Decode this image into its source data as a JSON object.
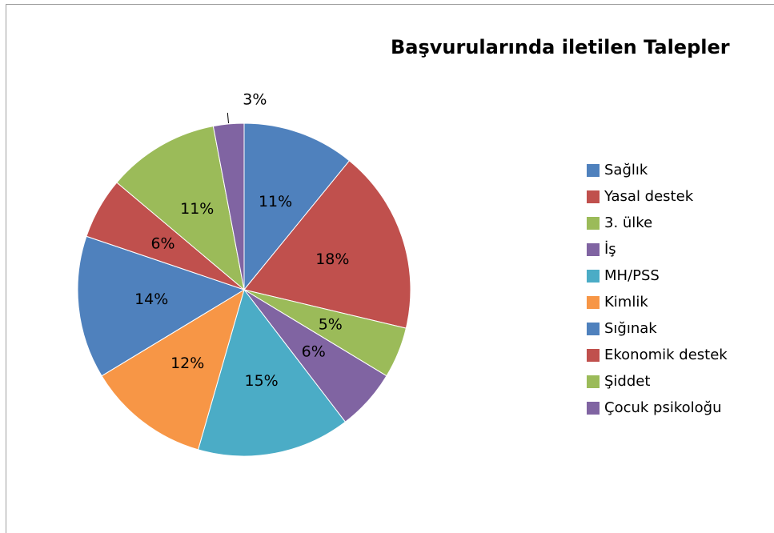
{
  "chart_data": {
    "type": "pie",
    "title": "Başvurularında iletilen Talepler",
    "categories": [
      "Sağlık",
      "Yasal destek",
      "3. ülke",
      "İş",
      "MH/PSS",
      "Kimlik",
      "Sığınak",
      "Ekonomik destek",
      "Şiddet",
      "Çocuk psikoloğu"
    ],
    "values": [
      11,
      18,
      5,
      6,
      15,
      12,
      14,
      6,
      11,
      3
    ],
    "value_labels": [
      "11%",
      "18%",
      "5%",
      "6%",
      "15%",
      "12%",
      "14%",
      "6%",
      "11%",
      "3%"
    ],
    "colors": [
      "#4f81bd",
      "#c0504d",
      "#9bbb59",
      "#8064a2",
      "#4bacc6",
      "#f79646",
      "#4f81bd",
      "#c0504d",
      "#9bbb59",
      "#8064a2"
    ],
    "legend": "right"
  }
}
